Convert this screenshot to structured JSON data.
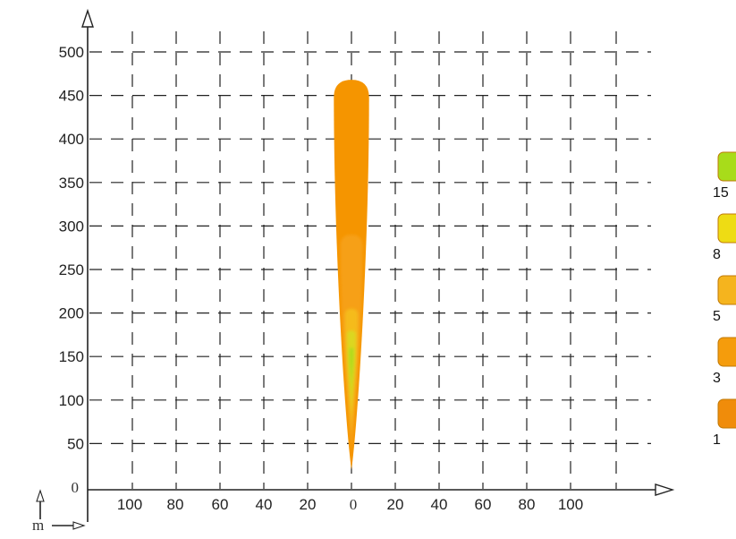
{
  "chart_data": {
    "type": "heatmap",
    "title": "",
    "xlabel": "m",
    "ylabel": "",
    "x_ticks": [
      "100",
      "80",
      "60",
      "40",
      "20",
      "0",
      "20",
      "40",
      "60",
      "80",
      "100"
    ],
    "y_ticks": [
      "0",
      "50",
      "100",
      "150",
      "200",
      "250",
      "300",
      "350",
      "400",
      "450",
      "500"
    ],
    "xlim": [
      -100,
      100
    ],
    "ylim": [
      0,
      500
    ],
    "grid": true,
    "legend_position": "right",
    "legend": [
      {
        "label": "15",
        "color": "#a8dc1a"
      },
      {
        "label": "8",
        "color": "#eedc14"
      },
      {
        "label": "5",
        "color": "#f5b41e"
      },
      {
        "label": "3",
        "color": "#f59c0c"
      },
      {
        "label": "1",
        "color": "#f08c0a"
      }
    ],
    "contours": [
      {
        "level": "1",
        "x_halfwidth": 8,
        "y_min": 20,
        "y_max": 468,
        "color": "#f59500"
      },
      {
        "level": "3",
        "x_halfwidth": 5,
        "y_min": 40,
        "y_max": 290,
        "color": "#f7a21c"
      },
      {
        "level": "5",
        "x_halfwidth": 3,
        "y_min": 60,
        "y_max": 205,
        "color": "#f5c01e"
      },
      {
        "level": "8",
        "x_halfwidth": 2,
        "y_min": 80,
        "y_max": 180,
        "color": "#d8dc20"
      },
      {
        "level": "15",
        "x_halfwidth": 1,
        "y_min": 100,
        "y_max": 160,
        "color": "#a8dc1a"
      }
    ]
  }
}
